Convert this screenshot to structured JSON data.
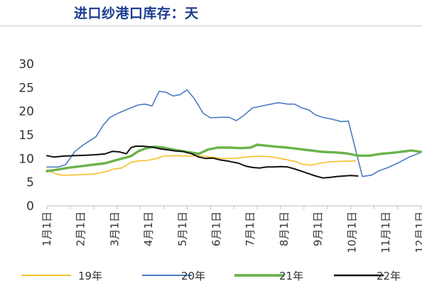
{
  "chart_data": {
    "type": "line",
    "title": "进口纱港口库存：天",
    "xlabel": "",
    "ylabel": "",
    "ylim": [
      0,
      30
    ],
    "yticks": [
      0,
      5,
      10,
      15,
      20,
      25,
      30
    ],
    "x_ticks": [
      "1月1日",
      "2月1日",
      "3月1日",
      "4月1日",
      "5月1日",
      "6月1日",
      "7月1日",
      "8月1日",
      "9月1日",
      "10月1日",
      "11月1日",
      "12月1日"
    ],
    "grid": false,
    "legend_position": "bottom",
    "series": [
      {
        "name": "19年",
        "color": "#f5c02a",
        "width": 1.6,
        "points": [
          [
            0.0,
            7.6
          ],
          [
            0.3,
            6.9
          ],
          [
            0.6,
            6.5
          ],
          [
            1.0,
            6.5
          ],
          [
            1.5,
            6.6
          ],
          [
            2.0,
            6.7
          ],
          [
            2.5,
            7.2
          ],
          [
            2.8,
            7.7
          ],
          [
            3.2,
            8.0
          ],
          [
            3.6,
            9.2
          ],
          [
            3.9,
            9.5
          ],
          [
            4.3,
            9.6
          ],
          [
            4.7,
            10.0
          ],
          [
            5.0,
            10.5
          ],
          [
            5.5,
            10.6
          ],
          [
            6.0,
            10.5
          ],
          [
            6.5,
            10.6
          ],
          [
            7.0,
            10.3
          ],
          [
            7.5,
            10.0
          ],
          [
            8.0,
            10.0
          ],
          [
            8.5,
            10.3
          ],
          [
            9.0,
            10.5
          ],
          [
            9.5,
            10.4
          ],
          [
            9.9,
            10.1
          ],
          [
            10.2,
            9.8
          ],
          [
            10.6,
            9.4
          ],
          [
            10.9,
            8.8
          ],
          [
            11.3,
            8.6
          ],
          [
            11.7,
            9.0
          ],
          [
            12.1,
            9.3
          ],
          [
            12.6,
            9.4
          ],
          [
            13.2,
            9.5
          ]
        ]
      },
      {
        "name": "20年",
        "color": "#4a7cc0",
        "width": 1.6,
        "points": [
          [
            0.0,
            8.2
          ],
          [
            0.5,
            8.2
          ],
          [
            0.8,
            8.7
          ],
          [
            1.2,
            11.5
          ],
          [
            1.6,
            13.0
          ],
          [
            2.1,
            14.6
          ],
          [
            2.4,
            17.0
          ],
          [
            2.7,
            18.7
          ],
          [
            3.1,
            19.7
          ],
          [
            3.5,
            20.5
          ],
          [
            3.9,
            21.3
          ],
          [
            4.2,
            21.5
          ],
          [
            4.5,
            21.1
          ],
          [
            4.8,
            24.2
          ],
          [
            5.1,
            24.0
          ],
          [
            5.4,
            23.2
          ],
          [
            5.7,
            23.5
          ],
          [
            6.0,
            24.5
          ],
          [
            6.3,
            22.7
          ],
          [
            6.7,
            19.5
          ],
          [
            7.0,
            18.6
          ],
          [
            7.4,
            18.7
          ],
          [
            7.8,
            18.7
          ],
          [
            8.1,
            18.0
          ],
          [
            8.4,
            19.0
          ],
          [
            8.8,
            20.7
          ],
          [
            9.1,
            21.0
          ],
          [
            9.5,
            21.4
          ],
          [
            9.9,
            21.8
          ],
          [
            10.3,
            21.5
          ],
          [
            10.6,
            21.5
          ],
          [
            10.9,
            20.7
          ],
          [
            11.2,
            20.3
          ],
          [
            11.5,
            19.2
          ],
          [
            11.8,
            18.7
          ],
          [
            12.2,
            18.3
          ],
          [
            12.6,
            17.8
          ],
          [
            12.9,
            17.9
          ],
          [
            13.2,
            12.0
          ],
          [
            13.5,
            6.2
          ],
          [
            13.9,
            6.5
          ],
          [
            14.2,
            7.4
          ],
          [
            14.6,
            8.1
          ],
          [
            15.0,
            9.0
          ],
          [
            15.5,
            10.3
          ],
          [
            16.0,
            11.3
          ],
          [
            16.4,
            10.5
          ],
          [
            16.9,
            10.1
          ],
          [
            17.2,
            9.5
          ],
          [
            17.6,
            8.0
          ]
        ]
      },
      {
        "name": "21年",
        "color": "#6bb34b",
        "width": 3.4,
        "points": [
          [
            0.0,
            7.3
          ],
          [
            0.5,
            7.7
          ],
          [
            1.0,
            8.1
          ],
          [
            1.5,
            8.4
          ],
          [
            2.0,
            8.7
          ],
          [
            2.5,
            9.0
          ],
          [
            3.0,
            9.7
          ],
          [
            3.3,
            10.1
          ],
          [
            3.6,
            10.5
          ],
          [
            3.9,
            11.5
          ],
          [
            4.2,
            12.1
          ],
          [
            4.6,
            12.5
          ],
          [
            5.0,
            12.3
          ],
          [
            5.5,
            11.8
          ],
          [
            6.0,
            11.4
          ],
          [
            6.5,
            11.0
          ],
          [
            6.9,
            11.9
          ],
          [
            7.3,
            12.3
          ],
          [
            7.8,
            12.3
          ],
          [
            8.3,
            12.2
          ],
          [
            8.7,
            12.3
          ],
          [
            9.0,
            12.9
          ],
          [
            9.4,
            12.7
          ],
          [
            9.8,
            12.5
          ],
          [
            10.3,
            12.3
          ],
          [
            10.8,
            12.0
          ],
          [
            11.3,
            11.7
          ],
          [
            11.8,
            11.4
          ],
          [
            12.3,
            11.3
          ],
          [
            12.8,
            11.1
          ],
          [
            13.3,
            10.6
          ],
          [
            13.8,
            10.6
          ],
          [
            14.3,
            11.0
          ],
          [
            14.8,
            11.2
          ],
          [
            15.3,
            11.5
          ],
          [
            15.6,
            11.7
          ],
          [
            16.0,
            11.4
          ],
          [
            16.4,
            11.1
          ],
          [
            16.8,
            11.3
          ],
          [
            17.2,
            11.5
          ],
          [
            17.6,
            11.0
          ]
        ]
      },
      {
        "name": "22年",
        "color": "#111111",
        "width": 2.0,
        "points": [
          [
            0.0,
            10.6
          ],
          [
            0.3,
            10.3
          ],
          [
            0.7,
            10.5
          ],
          [
            1.2,
            10.6
          ],
          [
            1.7,
            10.7
          ],
          [
            2.1,
            10.8
          ],
          [
            2.5,
            11.0
          ],
          [
            2.8,
            11.5
          ],
          [
            3.1,
            11.4
          ],
          [
            3.4,
            11.0
          ],
          [
            3.6,
            12.3
          ],
          [
            3.8,
            12.6
          ],
          [
            4.1,
            12.6
          ],
          [
            4.5,
            12.4
          ],
          [
            4.9,
            12.0
          ],
          [
            5.2,
            11.8
          ],
          [
            5.5,
            11.6
          ],
          [
            5.8,
            11.5
          ],
          [
            6.2,
            11.0
          ],
          [
            6.5,
            10.3
          ],
          [
            6.8,
            10.0
          ],
          [
            7.1,
            10.1
          ],
          [
            7.4,
            9.7
          ],
          [
            7.8,
            9.4
          ],
          [
            8.2,
            9.0
          ],
          [
            8.5,
            8.4
          ],
          [
            8.8,
            8.1
          ],
          [
            9.1,
            8.0
          ],
          [
            9.4,
            8.2
          ],
          [
            9.7,
            8.2
          ],
          [
            10.0,
            8.3
          ],
          [
            10.3,
            8.2
          ],
          [
            10.6,
            7.8
          ],
          [
            10.9,
            7.3
          ],
          [
            11.2,
            6.8
          ],
          [
            11.5,
            6.3
          ],
          [
            11.8,
            5.9
          ],
          [
            12.1,
            6.0
          ],
          [
            12.4,
            6.2
          ],
          [
            12.7,
            6.3
          ],
          [
            13.0,
            6.4
          ],
          [
            13.3,
            6.3
          ]
        ]
      }
    ]
  }
}
